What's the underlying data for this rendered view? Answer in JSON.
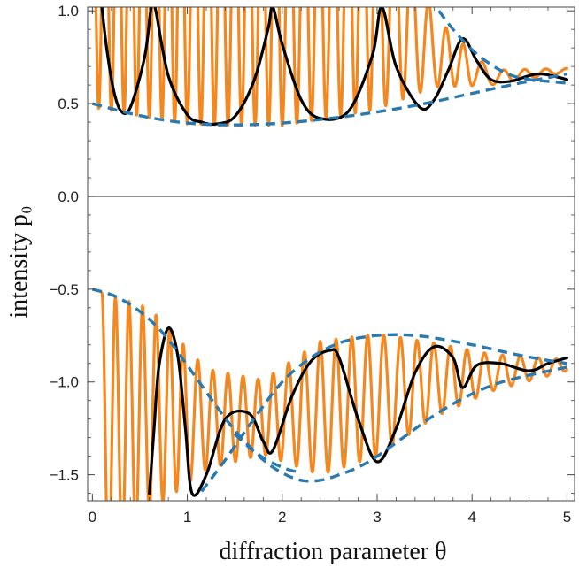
{
  "chart_data": {
    "type": "line",
    "xlabel": "diffraction parameter θ",
    "ylabel": "intensity p₀",
    "xlim": [
      -0.05,
      5.08
    ],
    "ylim": [
      -1.64,
      1.02
    ],
    "x_ticks": [
      0,
      1,
      2,
      3,
      4,
      5
    ],
    "x_tick_labels": [
      "0",
      "1",
      "2",
      "3",
      "4",
      "5"
    ],
    "y_ticks": [
      -1.5,
      -1.0,
      -0.5,
      0.0,
      0.5,
      1.0
    ],
    "y_tick_labels": [
      "−1.5",
      "−1.0",
      "−0.5",
      "0.0",
      "0.5",
      "1.0"
    ],
    "zero_line": true,
    "grid": false,
    "colors": {
      "fast": "#f5871f",
      "slow": "#000000",
      "envelope": "#2a7ab0"
    },
    "series": [
      {
        "role": "upper-branch envelope (lower)",
        "style": "dashed",
        "color": "#2a7ab0",
        "x": [
          0.0,
          0.5,
          1.0,
          1.5,
          2.0,
          2.5,
          3.0,
          3.5,
          4.0,
          4.5,
          5.0
        ],
        "y": [
          0.5,
          0.435,
          0.395,
          0.385,
          0.395,
          0.42,
          0.455,
          0.5,
          0.555,
          0.61,
          0.66
        ]
      },
      {
        "role": "upper-branch envelope (upper)",
        "style": "dashed",
        "color": "#2a7ab0",
        "x": [
          3.65,
          3.8,
          4.0,
          4.2,
          4.4,
          4.6,
          4.8,
          5.0
        ],
        "y": [
          1.0,
          0.9,
          0.79,
          0.71,
          0.655,
          0.63,
          0.62,
          0.61
        ]
      },
      {
        "role": "lower-branch envelope (left)",
        "style": "dashed",
        "color": "#2a7ab0",
        "x": [
          0.0,
          0.25,
          0.5,
          0.75,
          1.0,
          1.25,
          1.5,
          1.75,
          2.0,
          2.2
        ],
        "y": [
          -0.5,
          -0.54,
          -0.62,
          -0.74,
          -0.91,
          -1.09,
          -1.26,
          -1.39,
          -1.46,
          -1.49
        ]
      },
      {
        "role": "lower-branch envelope (upper arch)",
        "style": "dashed",
        "color": "#2a7ab0",
        "x": [
          1.15,
          1.4,
          1.7,
          2.0,
          2.3,
          2.6,
          2.9,
          3.2,
          3.5,
          3.8,
          4.1,
          4.4,
          4.7,
          5.0
        ],
        "y": [
          -1.59,
          -1.42,
          -1.2,
          -1.0,
          -0.87,
          -0.79,
          -0.755,
          -0.745,
          -0.755,
          -0.78,
          -0.81,
          -0.845,
          -0.875,
          -0.9
        ]
      },
      {
        "role": "lower-branch envelope (lower arch)",
        "style": "dashed",
        "color": "#2a7ab0",
        "x": [
          1.5,
          1.8,
          2.0,
          2.2,
          2.4,
          2.6,
          2.8,
          3.0,
          3.3,
          3.6,
          3.9,
          4.2,
          4.5,
          5.0
        ],
        "y": [
          -1.28,
          -1.42,
          -1.49,
          -1.53,
          -1.53,
          -1.5,
          -1.46,
          -1.4,
          -1.29,
          -1.18,
          -1.09,
          -1.02,
          -0.975,
          -0.92
        ]
      },
      {
        "role": "upper branch (slow oscillation)",
        "style": "solid",
        "color": "#000000",
        "x": [
          0.1,
          0.15,
          0.22,
          0.3,
          0.4,
          0.55,
          0.62,
          0.66,
          0.8,
          1.0,
          1.15,
          1.3,
          1.5,
          1.7,
          1.85,
          1.9,
          2.0,
          2.2,
          2.4,
          2.7,
          2.95,
          3.05,
          3.2,
          3.45,
          3.6,
          3.75,
          3.9,
          4.05,
          4.2,
          4.4,
          4.7,
          5.0
        ],
        "y": [
          1.02,
          0.8,
          0.58,
          0.46,
          0.48,
          0.75,
          1.02,
          1.02,
          0.65,
          0.44,
          0.4,
          0.39,
          0.43,
          0.62,
          0.9,
          1.02,
          0.82,
          0.52,
          0.42,
          0.46,
          0.76,
          1.02,
          0.7,
          0.48,
          0.52,
          0.68,
          0.85,
          0.73,
          0.63,
          0.62,
          0.66,
          0.63
        ]
      },
      {
        "role": "lower branch (slow oscillation)",
        "style": "solid",
        "color": "#000000",
        "x": [
          0.6,
          0.65,
          0.7,
          0.8,
          0.9,
          0.98,
          1.05,
          1.2,
          1.4,
          1.65,
          1.8,
          1.9,
          2.1,
          2.3,
          2.5,
          2.6,
          2.8,
          3.0,
          3.2,
          3.4,
          3.6,
          3.8,
          3.9,
          4.05,
          4.3,
          4.6,
          4.8,
          5.0
        ],
        "y": [
          -1.6,
          -1.25,
          -0.92,
          -0.71,
          -0.86,
          -1.25,
          -1.6,
          -1.5,
          -1.2,
          -1.17,
          -1.32,
          -1.37,
          -1.08,
          -0.89,
          -0.83,
          -0.87,
          -1.2,
          -1.43,
          -1.25,
          -0.95,
          -0.81,
          -0.87,
          -1.03,
          -0.91,
          -0.9,
          -0.94,
          -0.9,
          -0.87
        ]
      },
      {
        "role": "upper branch (fast oscillation)",
        "style": "solid",
        "color": "#f5871f",
        "x_range": [
          0.0,
          5.0
        ],
        "model": "offset + amplitude · cos(phase)",
        "center_x": [
          0.0,
          1.0,
          2.0,
          3.0,
          3.6,
          4.2,
          5.0
        ],
        "center_y": [
          1.2,
          1.15,
          1.1,
          1.15,
          0.78,
          0.64,
          0.68
        ],
        "amplitude_x": [
          0.0,
          1.0,
          2.0,
          3.0,
          3.6,
          4.2,
          5.0
        ],
        "amplitude_y": [
          0.72,
          0.76,
          0.72,
          0.68,
          0.19,
          0.04,
          0.01
        ],
        "cumulative_phase_turns_x": [
          0.0,
          1.0,
          2.0,
          3.0,
          4.0,
          5.0
        ],
        "cumulative_phase_turns_y": [
          0.0,
          7.5,
          14.5,
          21.0,
          26.5,
          31.0
        ]
      },
      {
        "role": "lower branch (fast oscillation)",
        "style": "solid",
        "color": "#f5871f",
        "x_range": [
          0.1,
          5.0
        ],
        "model": "offset + amplitude · cos(phase)",
        "center_x": [
          0.1,
          0.6,
          1.2,
          1.8,
          2.4,
          3.0,
          3.6,
          4.2,
          5.0
        ],
        "center_y": [
          -1.3,
          -1.15,
          -1.2,
          -1.19,
          -1.14,
          -1.07,
          -0.99,
          -0.95,
          -0.91
        ],
        "amplitude_x": [
          0.1,
          0.6,
          1.2,
          1.8,
          2.4,
          3.0,
          3.6,
          4.2,
          5.0
        ],
        "amplitude_y": [
          0.78,
          0.55,
          0.27,
          0.2,
          0.36,
          0.33,
          0.2,
          0.1,
          0.03
        ],
        "cumulative_phase_turns_x": [
          0.1,
          1.0,
          2.0,
          3.0,
          4.0,
          5.0
        ],
        "cumulative_phase_turns_y": [
          0.0,
          6.3,
          12.6,
          18.6,
          24.3,
          29.6
        ]
      }
    ]
  }
}
